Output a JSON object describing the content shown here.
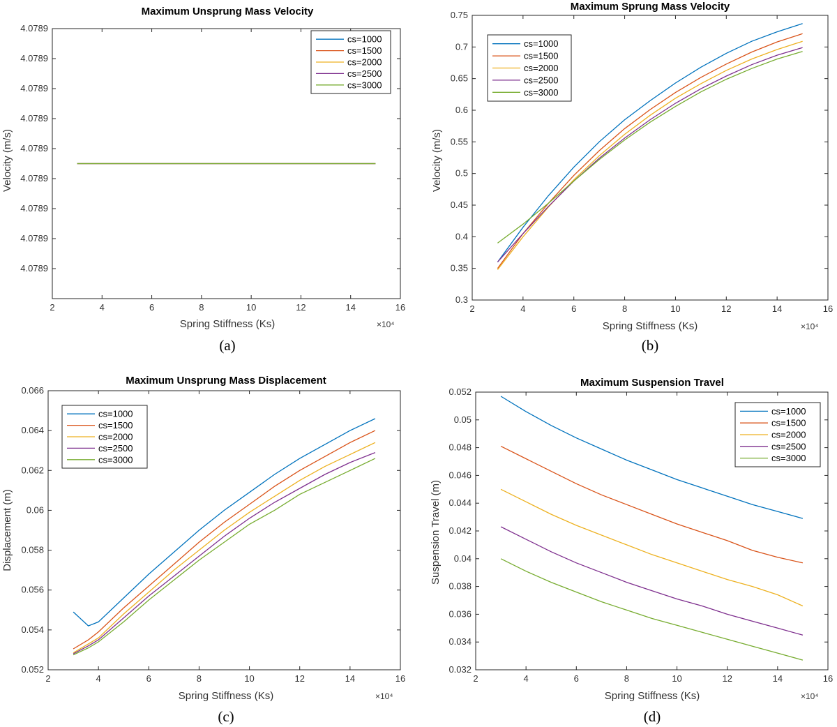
{
  "chart_data": [
    {
      "type": "line",
      "panel": "a",
      "caption": "(a)",
      "title": "Maximum Unsprung Mass Velocity",
      "xlabel": "Spring Stiffness (Ks)",
      "ylabel": "Velocity (m/s)",
      "x_multiplier": "×10⁴",
      "xlim": [
        2,
        16
      ],
      "xticks": [
        2,
        4,
        6,
        8,
        10,
        12,
        14,
        16
      ],
      "ylim": [
        0,
        9
      ],
      "yticks": [
        1,
        2,
        3,
        4,
        5,
        6,
        7,
        8,
        9
      ],
      "ytick_labels": [
        "4.0789",
        "4.0789",
        "4.0789",
        "4.0789",
        "4.0789",
        "4.0789",
        "4.0789",
        "4.0789",
        "4.0789"
      ],
      "legend_position": "top-right",
      "x": [
        3,
        15
      ],
      "series": [
        {
          "name": "cs=1000",
          "color": "#0072BD",
          "values": [
            4.5,
            4.5
          ]
        },
        {
          "name": "cs=1500",
          "color": "#D95319",
          "values": [
            4.5,
            4.5
          ]
        },
        {
          "name": "cs=2000",
          "color": "#EDB120",
          "values": [
            4.5,
            4.5
          ]
        },
        {
          "name": "cs=2500",
          "color": "#7E2F8E",
          "values": [
            4.5,
            4.5
          ]
        },
        {
          "name": "cs=3000",
          "color": "#77AC30",
          "values": [
            4.5,
            4.5
          ]
        }
      ]
    },
    {
      "type": "line",
      "panel": "b",
      "caption": "(b)",
      "title": "Maximum Sprung Mass Velocity",
      "xlabel": "Spring Stiffness (Ks)",
      "ylabel": "Velocity (m/s)",
      "x_multiplier": "×10⁴",
      "xlim": [
        2,
        16
      ],
      "xticks": [
        2,
        4,
        6,
        8,
        10,
        12,
        14,
        16
      ],
      "ylim": [
        0.3,
        0.75
      ],
      "yticks": [
        0.3,
        0.35,
        0.4,
        0.45,
        0.5,
        0.55,
        0.6,
        0.65,
        0.7,
        0.75
      ],
      "ytick_labels": [
        "0.3",
        "0.35",
        "0.4",
        "0.45",
        "0.5",
        "0.55",
        "0.6",
        "0.65",
        "0.7",
        "0.75"
      ],
      "legend_position": "top-left",
      "x": [
        3,
        4,
        5,
        6,
        7,
        8,
        9,
        10,
        11,
        12,
        13,
        14,
        15
      ],
      "series": [
        {
          "name": "cs=1000",
          "color": "#0072BD",
          "values": [
            0.36,
            0.415,
            0.465,
            0.51,
            0.55,
            0.585,
            0.615,
            0.643,
            0.668,
            0.69,
            0.709,
            0.724,
            0.737
          ]
        },
        {
          "name": "cs=1500",
          "color": "#D95319",
          "values": [
            0.35,
            0.405,
            0.453,
            0.497,
            0.536,
            0.571,
            0.601,
            0.628,
            0.652,
            0.673,
            0.692,
            0.708,
            0.721
          ]
        },
        {
          "name": "cs=2000",
          "color": "#EDB120",
          "values": [
            0.348,
            0.4,
            0.447,
            0.49,
            0.528,
            0.562,
            0.592,
            0.619,
            0.642,
            0.663,
            0.681,
            0.696,
            0.709
          ]
        },
        {
          "name": "cs=2500",
          "color": "#7E2F8E",
          "values": [
            0.36,
            0.405,
            0.448,
            0.488,
            0.524,
            0.556,
            0.585,
            0.611,
            0.634,
            0.654,
            0.672,
            0.687,
            0.699
          ]
        },
        {
          "name": "cs=3000",
          "color": "#77AC30",
          "values": [
            0.39,
            0.42,
            0.453,
            0.488,
            0.522,
            0.553,
            0.581,
            0.606,
            0.629,
            0.649,
            0.666,
            0.681,
            0.693
          ]
        }
      ]
    },
    {
      "type": "line",
      "panel": "c",
      "caption": "(c)",
      "title": "Maximum Unsprung Mass Displacement",
      "xlabel": "Spring Stiffness (Ks)",
      "ylabel": "Displacement (m)",
      "x_multiplier": "×10⁴",
      "xlim": [
        2,
        16
      ],
      "xticks": [
        2,
        4,
        6,
        8,
        10,
        12,
        14,
        16
      ],
      "ylim": [
        0.052,
        0.066
      ],
      "yticks": [
        0.052,
        0.054,
        0.056,
        0.058,
        0.06,
        0.062,
        0.064,
        0.066
      ],
      "ytick_labels": [
        "0.052",
        "0.054",
        "0.056",
        "0.058",
        "0.06",
        "0.062",
        "0.064",
        "0.066"
      ],
      "legend_position": "top-left",
      "x": [
        3,
        3.6,
        4,
        5,
        6,
        7,
        8,
        9,
        10,
        11,
        12,
        13,
        14,
        15
      ],
      "series": [
        {
          "name": "cs=1000",
          "color": "#0072BD",
          "values": [
            0.0549,
            0.0542,
            0.0544,
            0.0556,
            0.0568,
            0.0579,
            0.059,
            0.06,
            0.0609,
            0.0618,
            0.0626,
            0.0633,
            0.064,
            0.0646
          ]
        },
        {
          "name": "cs=1500",
          "color": "#D95319",
          "values": [
            0.05305,
            0.0535,
            0.0539,
            0.0551,
            0.0562,
            0.0573,
            0.0584,
            0.0594,
            0.0603,
            0.0612,
            0.062,
            0.0627,
            0.0634,
            0.064
          ]
        },
        {
          "name": "cs=2000",
          "color": "#EDB120",
          "values": [
            0.05285,
            0.0533,
            0.0536,
            0.0548,
            0.0559,
            0.057,
            0.058,
            0.059,
            0.0599,
            0.0607,
            0.0615,
            0.0622,
            0.0628,
            0.0634
          ]
        },
        {
          "name": "cs=2500",
          "color": "#7E2F8E",
          "values": [
            0.0528,
            0.0532,
            0.0535,
            0.0546,
            0.0557,
            0.0567,
            0.0577,
            0.0587,
            0.0596,
            0.0604,
            0.0611,
            0.0618,
            0.0624,
            0.0629
          ]
        },
        {
          "name": "cs=3000",
          "color": "#77AC30",
          "values": [
            0.05275,
            0.0531,
            0.0534,
            0.0544,
            0.0555,
            0.0565,
            0.0575,
            0.0584,
            0.0593,
            0.06,
            0.0608,
            0.0614,
            0.062,
            0.0626
          ]
        }
      ]
    },
    {
      "type": "line",
      "panel": "d",
      "caption": "(d)",
      "title": "Maximum Suspension Travel",
      "xlabel": "Spring Stiffness (Ks)",
      "ylabel": "Suspension Travel (m)",
      "x_multiplier": "×10⁴",
      "xlim": [
        2,
        16
      ],
      "xticks": [
        2,
        4,
        6,
        8,
        10,
        12,
        14,
        16
      ],
      "ylim": [
        0.032,
        0.052
      ],
      "yticks": [
        0.032,
        0.034,
        0.036,
        0.038,
        0.04,
        0.042,
        0.044,
        0.046,
        0.048,
        0.05,
        0.052
      ],
      "ytick_labels": [
        "0.032",
        "0.034",
        "0.036",
        "0.038",
        "0.04",
        "0.042",
        "0.044",
        "0.046",
        "0.048",
        "0.05",
        "0.052"
      ],
      "legend_position": "top-right",
      "x": [
        3,
        4,
        5,
        6,
        7,
        8,
        9,
        10,
        11,
        12,
        13,
        14,
        15
      ],
      "series": [
        {
          "name": "cs=1000",
          "color": "#0072BD",
          "values": [
            0.0517,
            0.0506,
            0.0496,
            0.0487,
            0.0479,
            0.0471,
            0.0464,
            0.0457,
            0.0451,
            0.0445,
            0.0439,
            0.0434,
            0.0429
          ]
        },
        {
          "name": "cs=1500",
          "color": "#D95319",
          "values": [
            0.0481,
            0.0472,
            0.0463,
            0.0454,
            0.0446,
            0.0439,
            0.0432,
            0.0425,
            0.0419,
            0.0413,
            0.0406,
            0.0401,
            0.0397
          ]
        },
        {
          "name": "cs=2000",
          "color": "#EDB120",
          "values": [
            0.045,
            0.0441,
            0.0432,
            0.0424,
            0.0417,
            0.041,
            0.0403,
            0.0397,
            0.0391,
            0.0385,
            0.038,
            0.0374,
            0.0366
          ]
        },
        {
          "name": "cs=2500",
          "color": "#7E2F8E",
          "values": [
            0.0423,
            0.0414,
            0.0405,
            0.0397,
            0.039,
            0.0383,
            0.0377,
            0.0371,
            0.0366,
            0.036,
            0.0355,
            0.035,
            0.0345
          ]
        },
        {
          "name": "cs=3000",
          "color": "#77AC30",
          "values": [
            0.04,
            0.0391,
            0.0383,
            0.0376,
            0.0369,
            0.0363,
            0.0357,
            0.0352,
            0.0347,
            0.0342,
            0.0337,
            0.0332,
            0.0327
          ]
        }
      ]
    }
  ]
}
